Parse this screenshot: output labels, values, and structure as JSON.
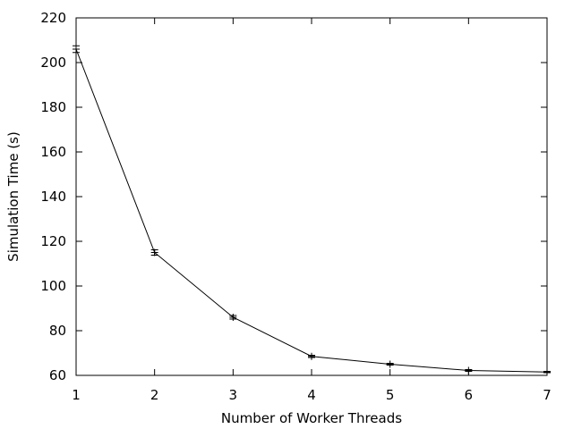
{
  "chart_data": {
    "type": "line",
    "title": "",
    "xlabel": "Number of Worker Threads",
    "ylabel": "Simulation Time (s)",
    "xlim": [
      1,
      7
    ],
    "ylim": [
      60,
      220
    ],
    "x_ticks": [
      "1",
      "2",
      "3",
      "4",
      "5",
      "6",
      "7"
    ],
    "y_ticks": [
      "60",
      "80",
      "100",
      "120",
      "140",
      "160",
      "180",
      "200",
      "220"
    ],
    "grid": false,
    "legend": "none",
    "line_color": "#000000",
    "series": [
      {
        "x": [
          1,
          2,
          3,
          4,
          5,
          6,
          7
        ],
        "y": [
          206,
          115,
          86,
          68.5,
          65,
          62.2,
          61.5
        ],
        "error": [
          1.5,
          1.2,
          0.8,
          0.5,
          0.4,
          0.4,
          0.3
        ]
      }
    ]
  }
}
